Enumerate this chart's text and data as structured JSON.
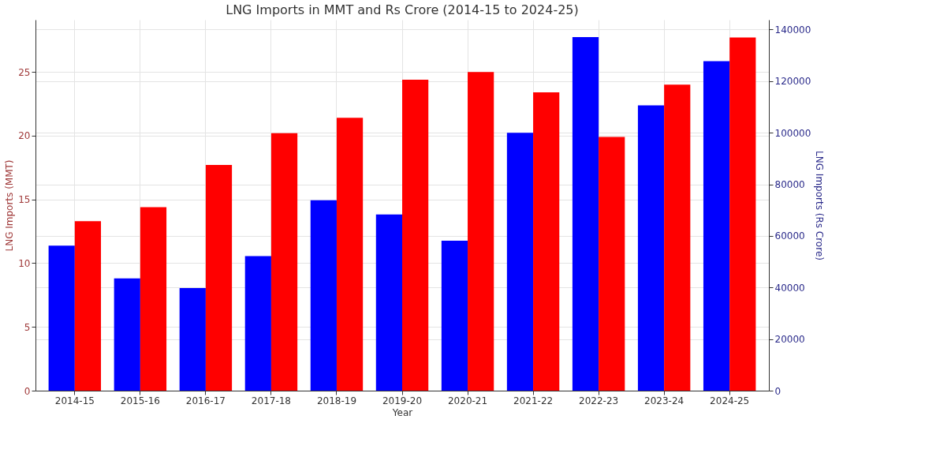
{
  "chart_data": {
    "type": "bar",
    "title": "LNG Imports in MMT and Rs Crore (2014-15 to 2024-25)",
    "xlabel": "Year",
    "ylabel": "LNG Imports (MMT)",
    "y2label": "LNG Imports (Rs Crore)",
    "categories": [
      "2014-15",
      "2015-16",
      "2016-17",
      "2017-18",
      "2018-19",
      "2019-20",
      "2020-21",
      "2021-22",
      "2022-23",
      "2023-24",
      "2024-25"
    ],
    "series": [
      {
        "color": "#0000ff",
        "axis": "y2",
        "values": [
          56200,
          43500,
          39800,
          52200,
          73800,
          68300,
          58100,
          100000,
          137100,
          110600,
          127700
        ]
      },
      {
        "color": "#ff0000",
        "axis": "y",
        "values": [
          13.3,
          14.4,
          17.7,
          20.2,
          21.4,
          24.4,
          25.0,
          23.4,
          19.9,
          24.0,
          27.7
        ]
      }
    ],
    "ylim": [
      0,
      29.1
    ],
    "yticks": [
      0,
      5,
      10,
      15,
      20,
      25
    ],
    "y2lim": [
      0,
      143800
    ],
    "y2ticks": [
      0,
      20000,
      40000,
      60000,
      80000,
      100000,
      120000,
      140000
    ],
    "grid": true
  }
}
